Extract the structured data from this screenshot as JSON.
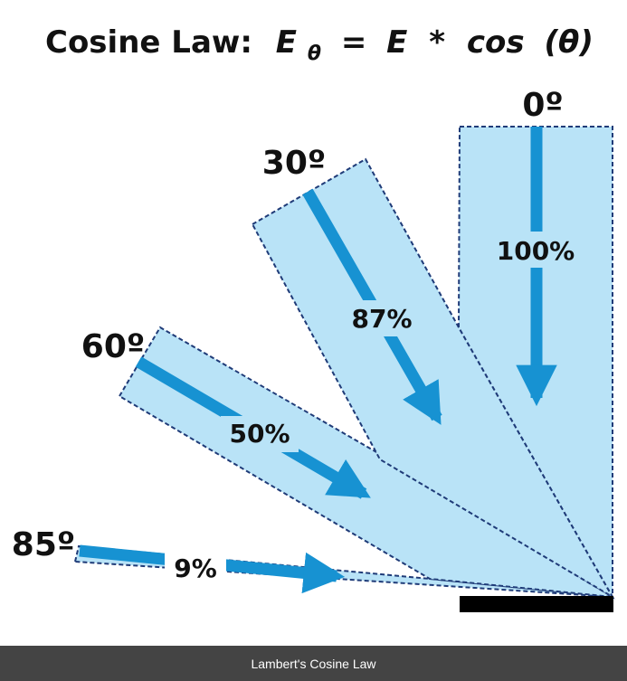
{
  "title": {
    "prefix": "Cosine Law:",
    "lhs": "E",
    "subscript": "θ",
    "equals": "=",
    "rhs_var": "E",
    "operator": "*",
    "func": "cos",
    "argument": "(θ)"
  },
  "beams": [
    {
      "angle_label": "0º",
      "percent_label": "100%"
    },
    {
      "angle_label": "30º",
      "percent_label": "87%"
    },
    {
      "angle_label": "60º",
      "percent_label": "50%"
    },
    {
      "angle_label": "85º",
      "percent_label": "9%"
    }
  ],
  "caption": "Lambert's Cosine Law",
  "colors": {
    "beam_fill": "#b9e3f7",
    "beam_outline": "#1f3b78",
    "arrow": "#1792d2",
    "surface": "#000000",
    "caption_bar": "#444444"
  }
}
